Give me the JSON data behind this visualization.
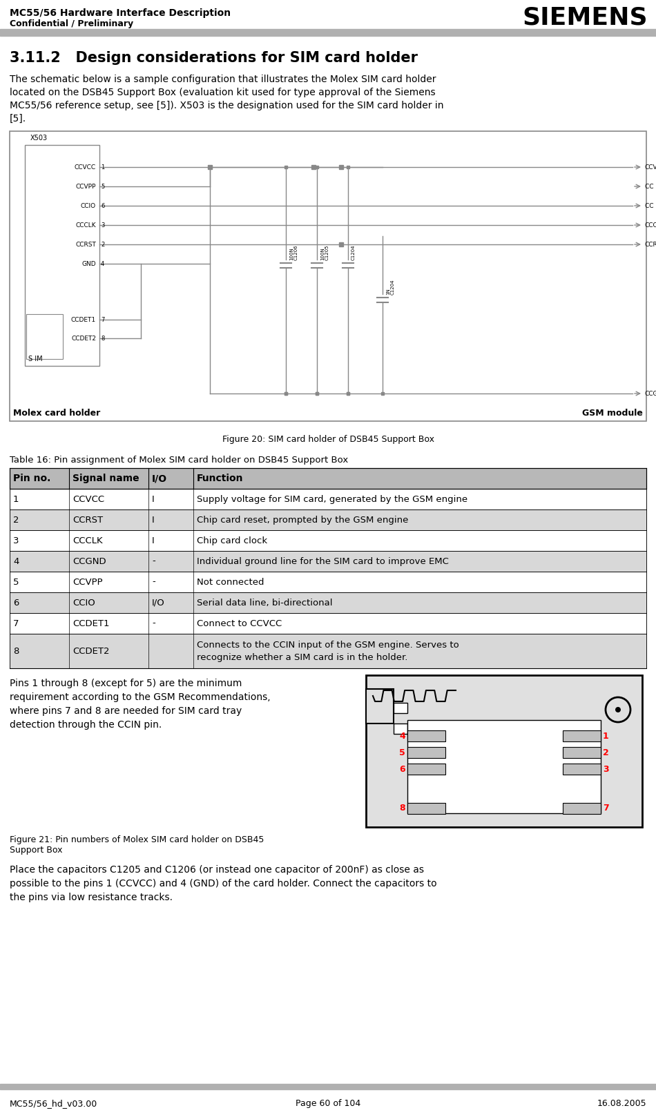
{
  "page_title_line1": "MC55/56 Hardware Interface Description",
  "page_title_line2": "Confidential / Preliminary",
  "siemens_logo": "SIEMENS",
  "section_title": "3.11.2   Design considerations for SIM card holder",
  "intro_text": "The schematic below is a sample configuration that illustrates the Molex SIM card holder\nlocated on the DSB45 Support Box (evaluation kit used for type approval of the Siemens\nMC55/56 reference setup, see [5]). X503 is the designation used for the SIM card holder in\n[5].",
  "figure20_caption": "Figure 20: SIM card holder of DSB45 Support Box",
  "molex_label": "Molex card holder",
  "gsm_label": "GSM module",
  "table_title": "Table 16: Pin assignment of Molex SIM card holder on DSB45 Support Box",
  "table_headers": [
    "Pin no.",
    "Signal name",
    "I/O",
    "Function"
  ],
  "table_rows": [
    [
      "1",
      "CCVCC",
      "I",
      "Supply voltage for SIM card, generated by the GSM engine"
    ],
    [
      "2",
      "CCRST",
      "I",
      "Chip card reset, prompted by the GSM engine"
    ],
    [
      "3",
      "CCCLK",
      "I",
      "Chip card clock"
    ],
    [
      "4",
      "CCGND",
      "-",
      "Individual ground line for the SIM card to improve EMC"
    ],
    [
      "5",
      "CCVPP",
      "-",
      "Not connected"
    ],
    [
      "6",
      "CCIO",
      "I/O",
      "Serial data line, bi-directional"
    ],
    [
      "7",
      "CCDET1",
      "-",
      "Connect to CCVCC"
    ],
    [
      "8",
      "CCDET2",
      "",
      "Connects to the CCIN input of the GSM engine. Serves to\nrecognize whether a SIM card is in the holder."
    ]
  ],
  "para2_text": "Pins 1 through 8 (except for 5) are the minimum\nrequirement according to the GSM Recommendations,\nwhere pins 7 and 8 are needed for SIM card tray\ndetection through the CCIN pin.",
  "figure21_caption": "Figure 21: Pin numbers of Molex SIM card holder on DSB45\nSupport Box",
  "para3_text": "Place the capacitors C1205 and C1206 (or instead one capacitor of 200nF) as close as\npossible to the pins 1 (CCVCC) and 4 (GND) of the card holder. Connect the capacitors to\nthe pins via low resistance tracks.",
  "footer_left": "MC55/56_hd_v03.00",
  "footer_center": "Page 60 of 104",
  "footer_right": "16.08.2005",
  "header_bar_color": "#b0b0b0",
  "footer_bar_color": "#b0b0b0",
  "table_header_bg": "#b8b8b8",
  "table_row0_bg": "#ffffff",
  "table_row1_bg": "#d8d8d8",
  "schematic_line_color": "#888888",
  "schematic_border_color": "#888888"
}
